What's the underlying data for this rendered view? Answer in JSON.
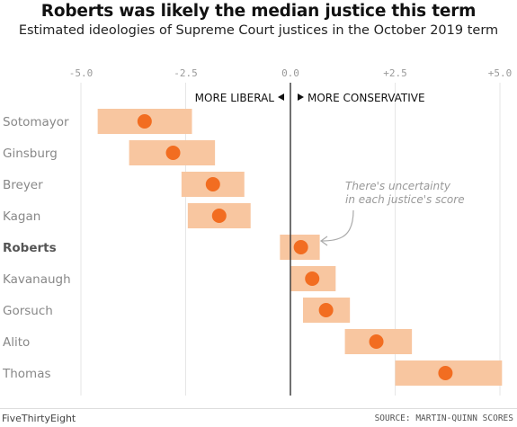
{
  "header": {
    "title": "Roberts was likely the median justice this term",
    "subtitle": "Estimated ideologies of Supreme Court justices in the October 2019 term"
  },
  "footer": {
    "brand": "FiveThirtyEight",
    "source": "SOURCE: MARTIN-QUINN SCORES"
  },
  "colors": {
    "dot": "#f26d21",
    "band": "#f8c6a0",
    "zero_line": "#333333",
    "grid": "#e6e6e6"
  },
  "chart_data": {
    "type": "scatter",
    "xlim": [
      -5.0,
      5.0
    ],
    "x_ticks": [
      "-5.0",
      "-2.5",
      "0.0",
      "+2.5",
      "+5.0"
    ],
    "x_tick_values": [
      -5.0,
      -2.5,
      0.0,
      2.5,
      5.0
    ],
    "direction_labels": {
      "left": "MORE LIBERAL",
      "right": "MORE CONSERVATIVE"
    },
    "annotation": {
      "line1": "There's uncertainty",
      "line2": "in each justice's score"
    },
    "highlight": "Roberts",
    "justices": [
      {
        "name": "Sotomayor",
        "score": -3.48,
        "low": -4.6,
        "high": -2.35
      },
      {
        "name": "Ginsburg",
        "score": -2.8,
        "low": -3.85,
        "high": -1.8
      },
      {
        "name": "Breyer",
        "score": -1.85,
        "low": -2.6,
        "high": -1.1
      },
      {
        "name": "Kagan",
        "score": -1.7,
        "low": -2.45,
        "high": -0.95
      },
      {
        "name": "Roberts",
        "score": 0.25,
        "low": -0.25,
        "high": 0.7
      },
      {
        "name": "Kavanaugh",
        "score": 0.52,
        "low": 0.0,
        "high": 1.08
      },
      {
        "name": "Gorsuch",
        "score": 0.85,
        "low": 0.3,
        "high": 1.42
      },
      {
        "name": "Alito",
        "score": 2.05,
        "low": 1.3,
        "high": 2.9
      },
      {
        "name": "Thomas",
        "score": 3.7,
        "low": 2.5,
        "high": 5.05
      }
    ]
  }
}
